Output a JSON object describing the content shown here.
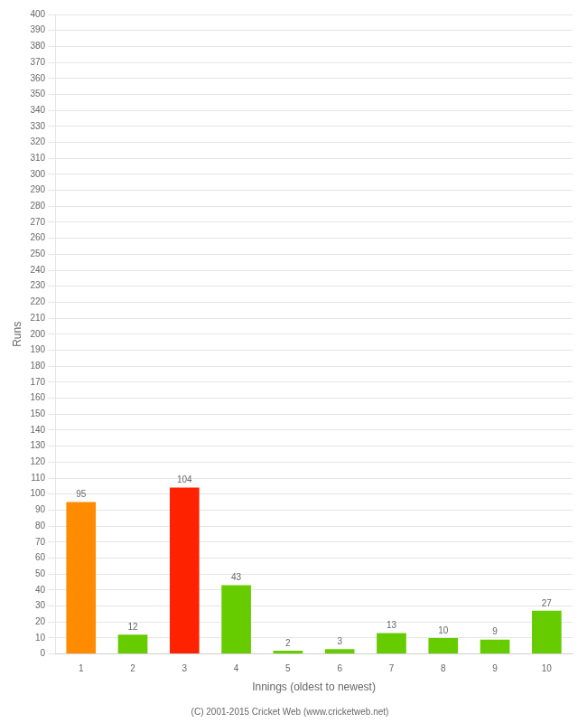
{
  "chart_data": {
    "type": "bar",
    "xlabel": "Innings (oldest to newest)",
    "ylabel": "Runs",
    "categories": [
      "1",
      "2",
      "3",
      "4",
      "5",
      "6",
      "7",
      "8",
      "9",
      "10"
    ],
    "values": [
      95,
      12,
      104,
      43,
      2,
      3,
      13,
      10,
      9,
      27
    ],
    "colors": [
      "#ff8c00",
      "#66cc00",
      "#ff2200",
      "#66cc00",
      "#66cc00",
      "#66cc00",
      "#66cc00",
      "#66cc00",
      "#66cc00",
      "#66cc00"
    ],
    "ylim": [
      0,
      400
    ],
    "yticks": [
      0,
      10,
      20,
      30,
      40,
      50,
      60,
      70,
      80,
      90,
      100,
      110,
      120,
      130,
      140,
      150,
      160,
      170,
      180,
      190,
      200,
      210,
      220,
      230,
      240,
      250,
      260,
      270,
      280,
      290,
      300,
      310,
      320,
      330,
      340,
      350,
      360,
      370,
      380,
      390,
      400
    ],
    "grid": true,
    "data_labels": true,
    "annotations": [
      "(C) 2001-2015 Cricket Web (www.cricketweb.net)"
    ]
  }
}
